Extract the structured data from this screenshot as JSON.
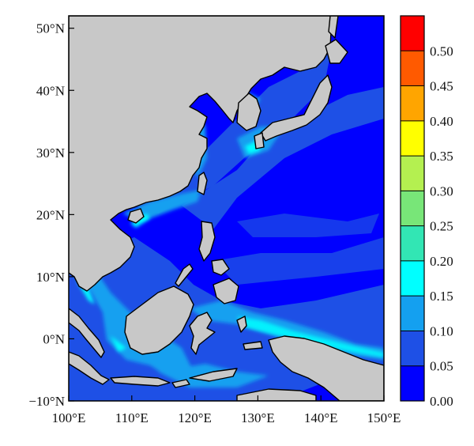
{
  "map": {
    "projection": "equirectangular",
    "lon_range": [
      100,
      150
    ],
    "lat_range": [
      -10,
      52
    ],
    "land_color": "#c8c8c8",
    "coastline_color": "#000000",
    "lon_ticks": [
      {
        "value": 100,
        "label": "100°E"
      },
      {
        "value": 110,
        "label": "110°E"
      },
      {
        "value": 120,
        "label": "120°E"
      },
      {
        "value": 130,
        "label": "130°E"
      },
      {
        "value": 140,
        "label": "140°E"
      },
      {
        "value": 150,
        "label": "150°E"
      }
    ],
    "lat_ticks": [
      {
        "value": 50,
        "label": "50°N"
      },
      {
        "value": 40,
        "label": "40°N"
      },
      {
        "value": 30,
        "label": "30°N"
      },
      {
        "value": 20,
        "label": "20°N"
      },
      {
        "value": 10,
        "label": "10°N"
      },
      {
        "value": 0,
        "label": "0°N"
      },
      {
        "value": -10,
        "label": "−10°N"
      }
    ]
  },
  "colorbar": {
    "levels": [
      0.0,
      0.05,
      0.1,
      0.15,
      0.2,
      0.25,
      0.3,
      0.35,
      0.4,
      0.45,
      0.5,
      0.55
    ],
    "labels": [
      "0.00",
      "0.05",
      "0.10",
      "0.15",
      "0.20",
      "0.25",
      "0.30",
      "0.35",
      "0.40",
      "0.45",
      "0.50"
    ],
    "colors": [
      "#0000ff",
      "#1e50e6",
      "#14a0f0",
      "#00ffff",
      "#32e6b4",
      "#78e678",
      "#b4f050",
      "#ffff00",
      "#ffa500",
      "#ff5a00",
      "#ff0000"
    ]
  }
}
